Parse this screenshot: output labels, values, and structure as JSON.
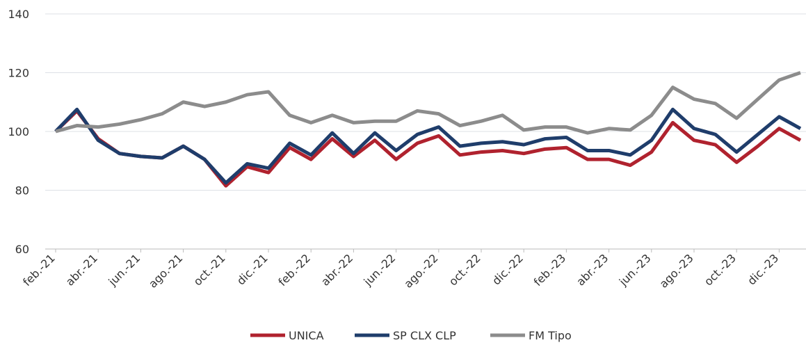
{
  "chart_data": {
    "type": "line",
    "categories": [
      "feb.-21",
      null,
      "abr.-21",
      null,
      "jun.-21",
      null,
      "ago.-21",
      null,
      "oct.-21",
      null,
      "dic.-21",
      null,
      "feb.-22",
      null,
      "abr.-22",
      null,
      "jun.-22",
      null,
      "ago.-22",
      null,
      "oct.-22",
      null,
      "dic.-22",
      null,
      "feb.-23",
      null,
      "abr.-23",
      null,
      "jun.-23",
      null,
      "ago.-23",
      null,
      "oct.-23",
      null,
      "dic.-23",
      null
    ],
    "series": [
      {
        "name": "UNICA",
        "color": "#b0222e",
        "values": [
          100,
          107,
          97.5,
          92.5,
          91.5,
          91,
          95,
          90.5,
          81.5,
          88,
          86,
          94.5,
          90.5,
          97.5,
          91.5,
          97,
          90.5,
          96,
          98.5,
          92,
          93,
          93.5,
          92.5,
          94,
          94.5,
          90.5,
          90.5,
          88.5,
          93,
          103,
          97,
          95.5,
          89.5,
          95,
          101,
          97
        ]
      },
      {
        "name": "SP CLX CLP",
        "color": "#1f3d6b",
        "values": [
          100,
          107.5,
          97,
          92.5,
          91.5,
          91,
          95,
          90.5,
          82.5,
          89,
          87.5,
          96,
          92,
          99.5,
          92.5,
          99.5,
          93.5,
          99,
          101.5,
          95,
          96,
          96.5,
          95.5,
          97.5,
          98,
          93.5,
          93.5,
          92,
          97,
          107.5,
          101,
          99,
          93,
          99,
          105,
          101
        ]
      },
      {
        "name": "FM Tipo",
        "color": "#8c8c8c",
        "values": [
          100,
          102,
          101.5,
          102.5,
          104,
          106,
          110,
          108.5,
          110,
          112.5,
          113.5,
          105.5,
          103,
          105.5,
          103,
          103.5,
          103.5,
          107,
          106,
          102,
          103.5,
          105.5,
          100.5,
          101.5,
          101.5,
          99.5,
          101,
          100.5,
          105.5,
          115,
          111,
          109.5,
          104.5,
          111,
          117.5,
          120
        ]
      }
    ],
    "ylim": [
      60,
      140
    ],
    "yticks": [
      60,
      80,
      100,
      120,
      140
    ],
    "grid": true,
    "legend": "bottom"
  }
}
